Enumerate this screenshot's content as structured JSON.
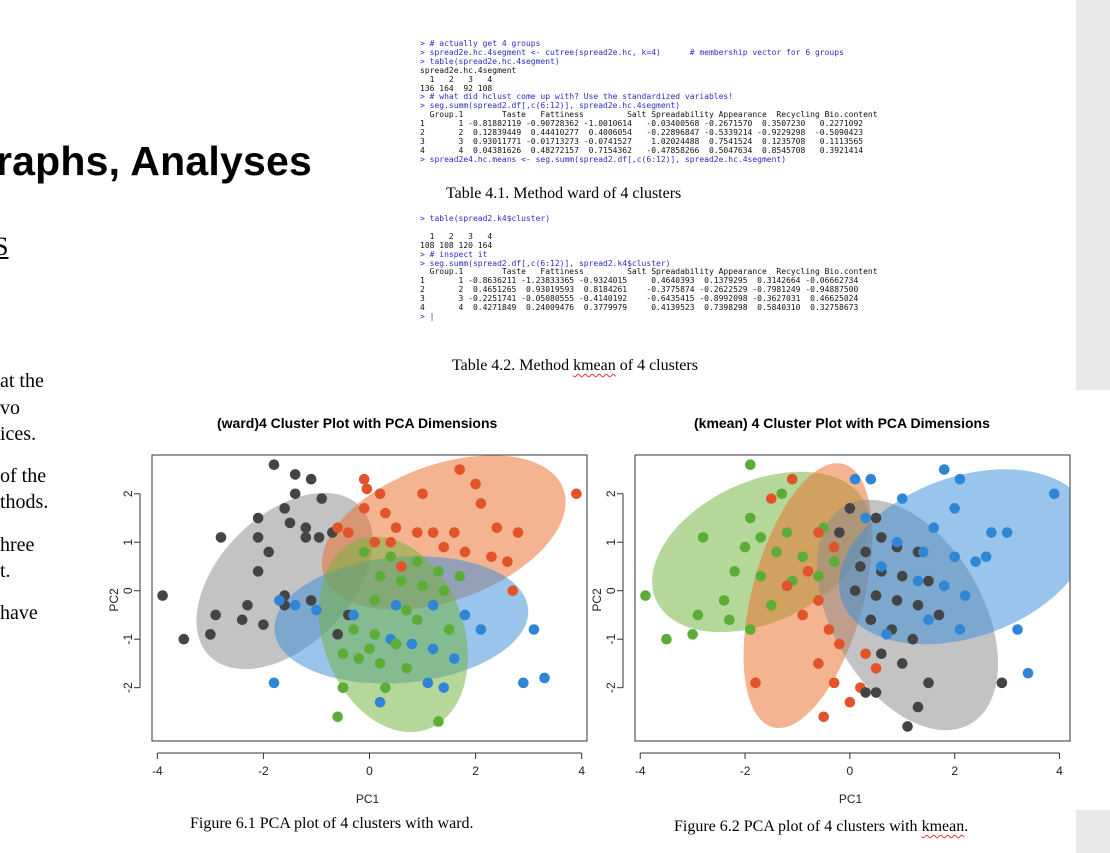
{
  "document": {
    "heading": "raphs, Analyses",
    "heading_s": "S",
    "fragments": [
      "at the",
      "vo",
      "ices.",
      "of the",
      "thods.",
      "hree",
      "t.",
      " have"
    ]
  },
  "console1": [
    {
      "t": "> # actually get 4 groups",
      "cmd": true
    },
    {
      "t": "> spread2e.hc.4segment <- cutree(spread2e.hc, k=4)      # membership vector for 6 groups",
      "cmd": true
    },
    {
      "t": "> table(spread2e.hc.4segment)",
      "cmd": true
    },
    {
      "t": "spread2e.hc.4segment",
      "cmd": false
    },
    {
      "t": "  1   2   3   4",
      "cmd": false
    },
    {
      "t": "136 164  92 108",
      "cmd": false
    },
    {
      "t": "> # what did hclust come up with? Use the standardized variables!",
      "cmd": true
    },
    {
      "t": "> seg.summ(spread2.df[,c(6:12)], spread2e.hc.4segment)",
      "cmd": true
    },
    {
      "t": "  Group.1        Taste   Fattiness         Salt Spreadability Appearance  Recycling Bio.content",
      "cmd": false
    },
    {
      "t": "1       1 -0.81882119 -0.90728362 -1.0010614   -0.03400568 -0.2671570  0.3507230   0.2271092",
      "cmd": false
    },
    {
      "t": "2       2  0.12839449  0.44410277  0.4006054   -0.22896847 -0.5339214 -0.9229298  -0.5090423",
      "cmd": false
    },
    {
      "t": "3       3  0.93011771 -0.01713273 -0.0741527    1.02024488  0.7541524  0.1235708   0.1113565",
      "cmd": false
    },
    {
      "t": "4       4  0.04381626  0.48272157  0.7154362   -0.47858266  0.5047634  0.8545708   0.3921414",
      "cmd": false
    },
    {
      "t": "> spread2e4.hc.means <- seg.summ(spread2.df[,c(6:12)], spread2e.hc.4segment)",
      "cmd": true
    }
  ],
  "console2": [
    {
      "t": "> table(spread2.k4$cluster)",
      "cmd": true
    },
    {
      "t": "",
      "cmd": false
    },
    {
      "t": "  1   2   3   4",
      "cmd": false
    },
    {
      "t": "108 108 120 164",
      "cmd": false
    },
    {
      "t": "> # inspect it",
      "cmd": true
    },
    {
      "t": "> seg.summ(spread2.df[,c(6:12)], spread2.k4$cluster)",
      "cmd": true
    },
    {
      "t": "  Group.1        Taste   Fattiness         Salt Spreadability Appearance  Recycling Bio.content",
      "cmd": false
    },
    {
      "t": "1       1 -0.8636211 -1.23833365 -0.9324015     0.4640393  0.1379295  0.3142664 -0.06662734",
      "cmd": false
    },
    {
      "t": "2       2  0.4651265  0.93019593  0.8184261    -0.3775874 -0.2622529 -0.7981249 -0.94887500",
      "cmd": false
    },
    {
      "t": "3       3 -0.2251741 -0.05080555 -0.4140192    -0.6435415 -0.8992098 -0.3627031  0.46625024",
      "cmd": false
    },
    {
      "t": "4       4  0.4271849  0.24009476  0.3779979     0.4139523  0.7398298  0.5840310  0.32758673",
      "cmd": false
    },
    {
      "t": "> |",
      "cmd": true
    }
  ],
  "captions": {
    "table41": "Table 4.1. Method ward of 4 clusters",
    "table42_pre": "Table 4.2. Method ",
    "table42_sq": "kmean",
    "table42_post": " of 4 clusters",
    "fig61": "Figure 6.1 PCA plot of 4 clusters with ward.",
    "fig62_pre": "Figure 6.2 PCA plot of 4 clusters with ",
    "fig62_sq": "kmean",
    "fig62_post": "."
  },
  "colors": {
    "gray": "#8c8c8c",
    "orange": "#ea6f2c",
    "green": "#73b33e",
    "blue": "#3c8dd8",
    "gray_pt": "#444444",
    "orange_pt": "#e2532a",
    "green_pt": "#5cad35",
    "blue_pt": "#2f86d6"
  },
  "chart_data": [
    {
      "type": "scatter",
      "title": "(ward)4 Cluster Plot with PCA Dimensions",
      "xlabel": "PC1",
      "ylabel": "PC2",
      "xlim": [
        -4.1,
        4.1
      ],
      "ylim": [
        -3.1,
        2.8
      ],
      "xticks": [
        -4,
        -2,
        0,
        2,
        4
      ],
      "yticks": [
        -2,
        -1,
        0,
        1,
        2
      ],
      "clusters": [
        {
          "color": "gray",
          "ellipse": {
            "cx": -1.6,
            "cy": 0.2,
            "rx": 2.0,
            "ry": 1.35,
            "rot": -45
          },
          "points": [
            [
              -1.8,
              2.6
            ],
            [
              -1.4,
              2.4
            ],
            [
              -1.1,
              2.3
            ],
            [
              -1.4,
              2.0
            ],
            [
              -0.9,
              1.9
            ],
            [
              -1.6,
              1.7
            ],
            [
              -2.1,
              1.5
            ],
            [
              -1.5,
              1.4
            ],
            [
              -1.2,
              1.3
            ],
            [
              -0.7,
              1.2
            ],
            [
              -0.95,
              1.1
            ],
            [
              -2.8,
              1.1
            ],
            [
              -2.1,
              1.1
            ],
            [
              -1.2,
              1.1
            ],
            [
              -1.9,
              0.8
            ],
            [
              -2.1,
              0.4
            ],
            [
              -3.9,
              -0.1
            ],
            [
              -1.6,
              -0.1
            ],
            [
              -2.3,
              -0.3
            ],
            [
              -2.9,
              -0.5
            ],
            [
              -2.4,
              -0.6
            ],
            [
              -2.0,
              -0.7
            ],
            [
              -3.0,
              -0.9
            ],
            [
              -3.5,
              -1.0
            ],
            [
              -1.6,
              -0.3
            ],
            [
              -1.1,
              -0.2
            ],
            [
              -0.6,
              -0.9
            ],
            [
              -0.4,
              -0.5
            ]
          ]
        },
        {
          "color": "orange",
          "ellipse": {
            "cx": 1.4,
            "cy": 1.2,
            "rx": 2.4,
            "ry": 1.4,
            "rot": -20
          },
          "points": [
            [
              1.7,
              2.5
            ],
            [
              2.0,
              2.2
            ],
            [
              -0.1,
              2.3
            ],
            [
              -0.05,
              2.1
            ],
            [
              0.2,
              2.0
            ],
            [
              3.9,
              2.0
            ],
            [
              1.0,
              2.0
            ],
            [
              2.1,
              1.8
            ],
            [
              -0.1,
              1.7
            ],
            [
              0.3,
              1.6
            ],
            [
              -0.6,
              1.3
            ],
            [
              0.5,
              1.3
            ],
            [
              0.9,
              1.2
            ],
            [
              1.2,
              1.2
            ],
            [
              1.6,
              1.2
            ],
            [
              2.4,
              1.3
            ],
            [
              2.8,
              1.2
            ],
            [
              -0.4,
              1.2
            ],
            [
              0.1,
              1.0
            ],
            [
              0.4,
              1.0
            ],
            [
              1.4,
              0.9
            ],
            [
              1.8,
              0.8
            ],
            [
              2.3,
              0.7
            ],
            [
              2.6,
              0.6
            ],
            [
              0.6,
              0.5
            ],
            [
              2.7,
              0.0
            ]
          ]
        },
        {
          "color": "blue",
          "ellipse": {
            "cx": 0.6,
            "cy": -0.6,
            "rx": 2.4,
            "ry": 1.3,
            "rot": -5
          },
          "points": [
            [
              -1.7,
              -0.2
            ],
            [
              -1.4,
              -0.3
            ],
            [
              -1.0,
              -0.4
            ],
            [
              -0.3,
              -0.5
            ],
            [
              0.5,
              -0.3
            ],
            [
              1.2,
              -0.3
            ],
            [
              1.8,
              -0.5
            ],
            [
              2.1,
              -0.8
            ],
            [
              3.1,
              -0.8
            ],
            [
              0.4,
              -1.0
            ],
            [
              0.8,
              -1.1
            ],
            [
              1.2,
              -1.2
            ],
            [
              1.6,
              -1.4
            ],
            [
              3.3,
              -1.8
            ],
            [
              2.9,
              -1.9
            ],
            [
              1.1,
              -1.9
            ],
            [
              1.4,
              -2.0
            ],
            [
              -1.8,
              -1.9
            ],
            [
              -0.5,
              -2.0
            ],
            [
              0.2,
              -2.3
            ]
          ]
        },
        {
          "color": "green",
          "ellipse": {
            "cx": 0.45,
            "cy": -0.9,
            "rx": 1.9,
            "ry": 1.45,
            "rot": 70
          },
          "points": [
            [
              -0.1,
              0.8
            ],
            [
              0.4,
              0.7
            ],
            [
              0.9,
              0.6
            ],
            [
              1.3,
              0.4
            ],
            [
              1.7,
              0.3
            ],
            [
              0.2,
              0.3
            ],
            [
              0.6,
              0.2
            ],
            [
              1.0,
              0.1
            ],
            [
              1.4,
              0.0
            ],
            [
              0.1,
              -0.2
            ],
            [
              0.7,
              -0.4
            ],
            [
              0.9,
              -0.6
            ],
            [
              -0.3,
              -0.8
            ],
            [
              0.1,
              -0.9
            ],
            [
              0.5,
              -1.1
            ],
            [
              -0.5,
              -1.3
            ],
            [
              -0.2,
              -1.4
            ],
            [
              0.2,
              -1.5
            ],
            [
              0.7,
              -1.6
            ],
            [
              -0.5,
              -2.0
            ],
            [
              0.3,
              -2.0
            ],
            [
              -0.6,
              -2.6
            ],
            [
              1.3,
              -2.7
            ],
            [
              0.0,
              -1.2
            ],
            [
              1.5,
              -0.8
            ]
          ]
        }
      ]
    },
    {
      "type": "scatter",
      "title": "(kmean) 4 Cluster Plot with PCA Dimensions",
      "xlabel": "PC1",
      "ylabel": "PC2",
      "xlim": [
        -4.1,
        4.2
      ],
      "ylim": [
        -3.1,
        2.8
      ],
      "xticks": [
        -4,
        -2,
        0,
        2,
        4
      ],
      "yticks": [
        -2,
        -1,
        0,
        1,
        2
      ],
      "clusters": [
        {
          "color": "green",
          "ellipse": {
            "cx": -1.7,
            "cy": 0.8,
            "rx": 2.2,
            "ry": 1.45,
            "rot": -25
          },
          "points": [
            [
              -1.9,
              2.6
            ],
            [
              -1.1,
              2.3
            ],
            [
              -1.3,
              2.0
            ],
            [
              -1.9,
              1.5
            ],
            [
              -2.8,
              1.1
            ],
            [
              -1.7,
              1.1
            ],
            [
              -1.2,
              1.2
            ],
            [
              -0.5,
              1.3
            ],
            [
              -2.0,
              0.9
            ],
            [
              -1.4,
              0.8
            ],
            [
              -0.9,
              0.7
            ],
            [
              -0.3,
              0.6
            ],
            [
              -2.2,
              0.4
            ],
            [
              -1.7,
              0.3
            ],
            [
              -1.1,
              0.2
            ],
            [
              -0.6,
              0.3
            ],
            [
              -3.9,
              -0.1
            ],
            [
              -2.4,
              -0.2
            ],
            [
              -1.5,
              -0.3
            ],
            [
              -2.9,
              -0.5
            ],
            [
              -2.3,
              -0.6
            ],
            [
              -3.5,
              -1.0
            ],
            [
              -3.0,
              -0.9
            ],
            [
              -1.9,
              -0.8
            ]
          ]
        },
        {
          "color": "orange",
          "ellipse": {
            "cx": -0.8,
            "cy": -0.1,
            "rx": 2.6,
            "ry": 1.15,
            "rot": 105
          },
          "points": [
            [
              -1.1,
              2.3
            ],
            [
              -1.5,
              1.9
            ],
            [
              -0.6,
              1.2
            ],
            [
              -0.3,
              0.9
            ],
            [
              -0.8,
              0.4
            ],
            [
              -1.2,
              0.1
            ],
            [
              -0.6,
              -0.2
            ],
            [
              -0.9,
              -0.5
            ],
            [
              -0.4,
              -0.8
            ],
            [
              -0.2,
              -1.1
            ],
            [
              0.3,
              -1.3
            ],
            [
              0.5,
              -1.6
            ],
            [
              -0.6,
              -1.5
            ],
            [
              -0.3,
              -1.9
            ],
            [
              -1.8,
              -1.9
            ],
            [
              0.0,
              -2.3
            ],
            [
              0.2,
              -2.0
            ],
            [
              -0.5,
              -2.6
            ]
          ]
        },
        {
          "color": "gray",
          "ellipse": {
            "cx": 1.1,
            "cy": -0.5,
            "rx": 2.4,
            "ry": 1.55,
            "rot": 60
          },
          "points": [
            [
              0.0,
              1.7
            ],
            [
              0.5,
              1.5
            ],
            [
              -0.2,
              1.2
            ],
            [
              0.6,
              1.1
            ],
            [
              0.3,
              0.8
            ],
            [
              0.9,
              0.9
            ],
            [
              1.3,
              0.8
            ],
            [
              0.2,
              0.5
            ],
            [
              0.6,
              0.4
            ],
            [
              1.0,
              0.3
            ],
            [
              1.5,
              0.2
            ],
            [
              0.1,
              0.0
            ],
            [
              0.5,
              -0.1
            ],
            [
              0.9,
              -0.2
            ],
            [
              1.3,
              -0.3
            ],
            [
              1.7,
              -0.5
            ],
            [
              0.4,
              -0.6
            ],
            [
              0.8,
              -0.8
            ],
            [
              1.2,
              -1.0
            ],
            [
              0.6,
              -1.3
            ],
            [
              1.0,
              -1.5
            ],
            [
              1.5,
              -1.9
            ],
            [
              2.9,
              -1.9
            ],
            [
              1.3,
              -2.4
            ],
            [
              1.1,
              -2.8
            ],
            [
              0.3,
              -2.1
            ],
            [
              0.5,
              -2.1
            ]
          ]
        },
        {
          "color": "blue",
          "ellipse": {
            "cx": 2.2,
            "cy": 0.7,
            "rx": 2.5,
            "ry": 1.65,
            "rot": -20
          },
          "points": [
            [
              1.8,
              2.5
            ],
            [
              0.1,
              2.3
            ],
            [
              0.4,
              2.3
            ],
            [
              2.1,
              2.3
            ],
            [
              3.9,
              2.0
            ],
            [
              2.0,
              1.7
            ],
            [
              1.0,
              1.9
            ],
            [
              0.3,
              1.5
            ],
            [
              1.6,
              1.3
            ],
            [
              2.7,
              1.2
            ],
            [
              3.0,
              1.2
            ],
            [
              0.9,
              1.0
            ],
            [
              1.4,
              0.8
            ],
            [
              2.0,
              0.7
            ],
            [
              2.4,
              0.6
            ],
            [
              2.6,
              0.7
            ],
            [
              0.6,
              0.5
            ],
            [
              1.3,
              0.2
            ],
            [
              1.8,
              0.1
            ],
            [
              2.2,
              -0.1
            ],
            [
              1.5,
              -0.6
            ],
            [
              2.1,
              -0.8
            ],
            [
              3.2,
              -0.8
            ],
            [
              3.4,
              -1.7
            ],
            [
              0.7,
              -0.9
            ]
          ]
        }
      ]
    }
  ]
}
